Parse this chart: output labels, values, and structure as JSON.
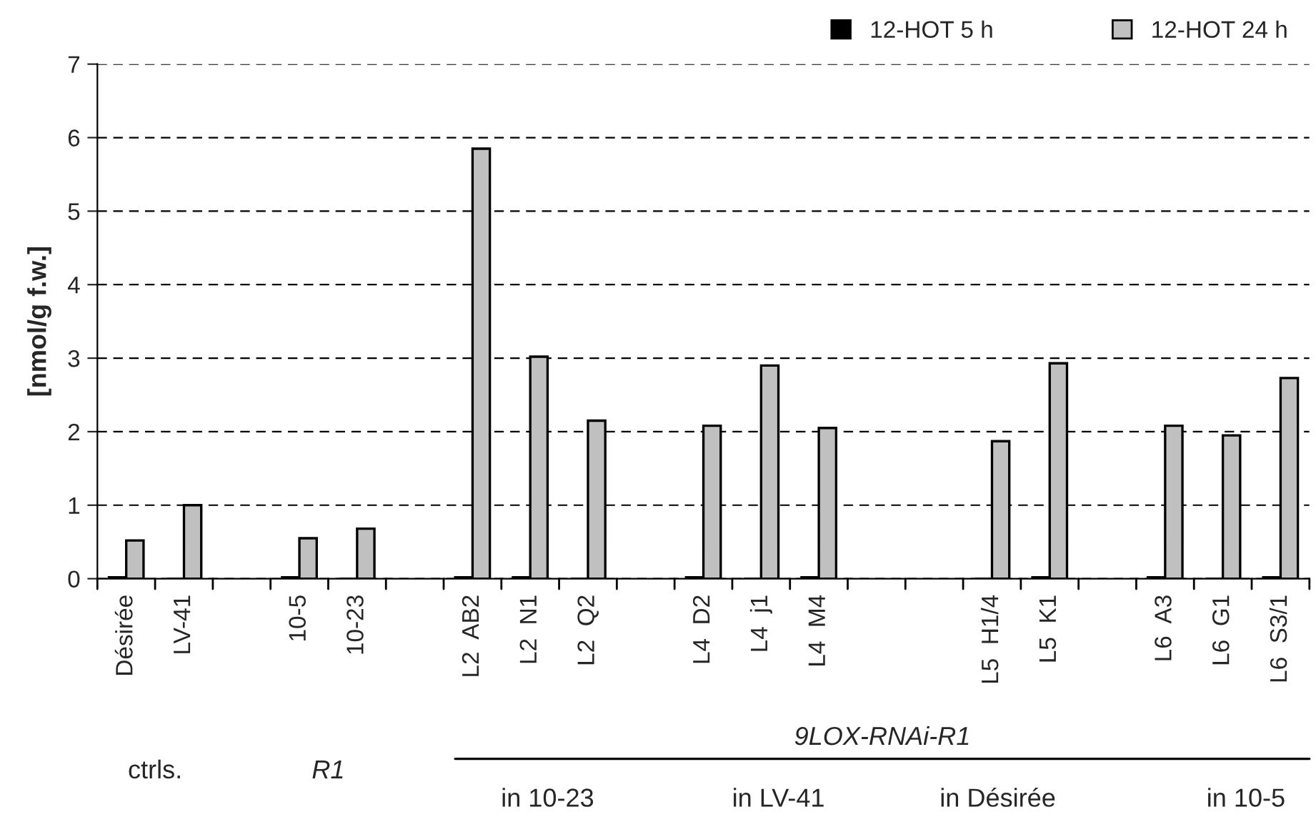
{
  "chart_data": {
    "type": "bar",
    "ylabel": "[nmol/g f.w.]",
    "categories": [
      "Désirée",
      "LV-41",
      null,
      "10-5",
      "10-23",
      null,
      "L2  AB2",
      "L2  N1",
      "L2  Q2",
      null,
      "L4  D2",
      "L4  j1",
      "L4  M4",
      null,
      null,
      "L5  H1/4",
      "L5  K1",
      null,
      "L6  A3",
      "L6  G1",
      "L6  S3/1"
    ],
    "series": [
      {
        "name": "12-HOT 5 h",
        "color": "#000000",
        "values": [
          0.02,
          0,
          null,
          0.02,
          0,
          null,
          0.02,
          0.02,
          0,
          null,
          0.02,
          0,
          0.02,
          null,
          null,
          0,
          0.02,
          null,
          0.02,
          0,
          0.02
        ]
      },
      {
        "name": "12-HOT 24 h",
        "color": "#c0c0c0",
        "values": [
          0.52,
          1.0,
          null,
          0.55,
          0.68,
          null,
          5.85,
          3.02,
          2.15,
          null,
          2.08,
          2.9,
          2.05,
          null,
          null,
          1.87,
          2.93,
          null,
          2.08,
          1.95,
          2.73
        ]
      }
    ],
    "ylim": [
      0,
      7
    ],
    "yticks": [
      0,
      1,
      2,
      3,
      4,
      5,
      6,
      7
    ],
    "grid": "y",
    "legend": "top right",
    "annotations": [
      "ctrls.",
      "R1",
      "9LOX-RNAi-R1",
      "in 10-23",
      "in LV-41",
      "in Désirée",
      "in 10-5"
    ]
  }
}
